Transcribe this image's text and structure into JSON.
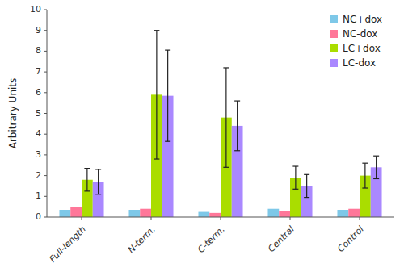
{
  "chart_data": {
    "type": "bar",
    "categories": [
      "Full-length",
      "N-term.",
      "C-term.",
      "Central",
      "Control"
    ],
    "series": [
      {
        "name": "NC+dox",
        "color": "#7ec8e8",
        "values": [
          0.35,
          0.35,
          0.25,
          0.4,
          0.35
        ]
      },
      {
        "name": "NC-dox",
        "color": "#ff7799",
        "values": [
          0.5,
          0.4,
          0.2,
          0.3,
          0.4
        ]
      },
      {
        "name": "LC+dox",
        "color": "#aadd00",
        "values": [
          1.8,
          5.9,
          4.8,
          1.9,
          2.0
        ],
        "errors": [
          0.55,
          3.1,
          2.4,
          0.55,
          0.6
        ]
      },
      {
        "name": "LC-dox",
        "color": "#aa88ff",
        "values": [
          1.7,
          5.85,
          4.4,
          1.5,
          2.4
        ],
        "errors": [
          0.6,
          2.2,
          1.2,
          0.55,
          0.55
        ]
      }
    ],
    "y_label": "Arbitrary Units",
    "ylim": [
      0,
      10
    ],
    "yticks": [
      0,
      1,
      2,
      3,
      4,
      5,
      6,
      7,
      8,
      9,
      10
    ],
    "grid": false,
    "legend": "upper right"
  }
}
